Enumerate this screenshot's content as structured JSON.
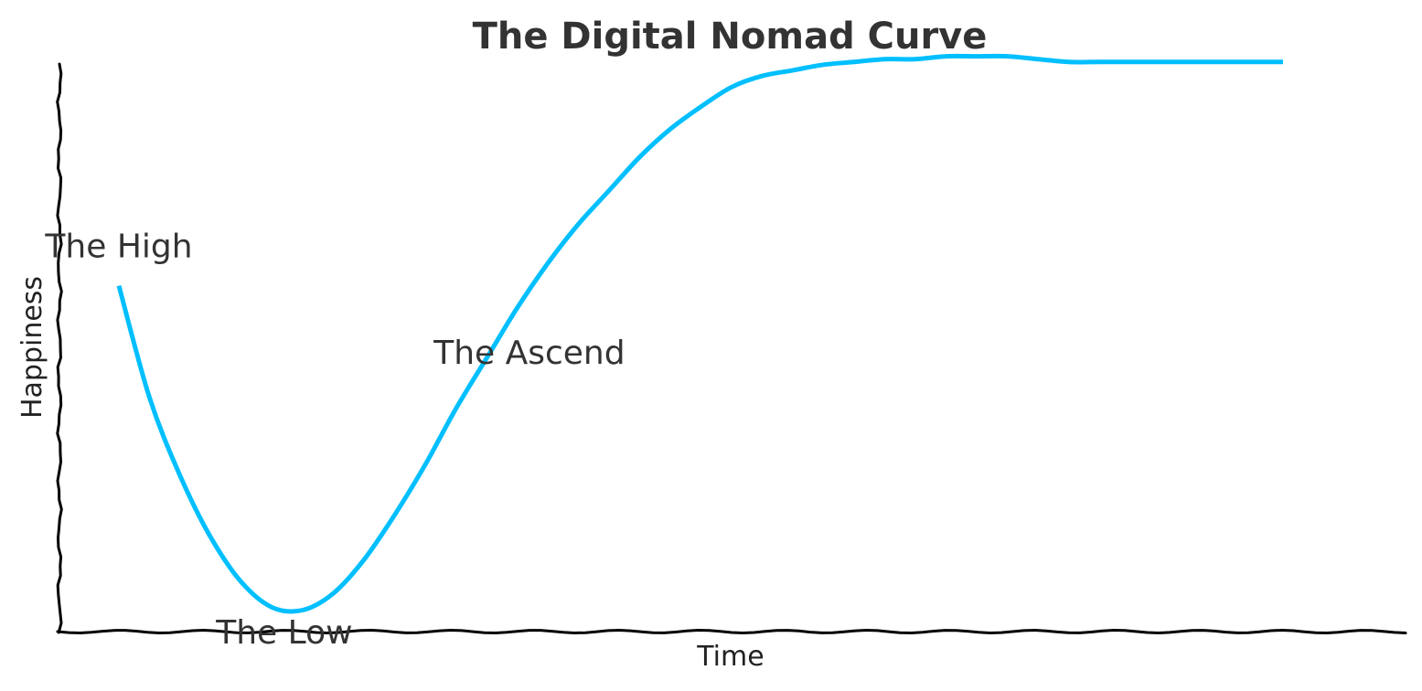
{
  "chart_data": {
    "type": "line",
    "title": "The Digital Nomad Curve",
    "xlabel": "Time",
    "ylabel": "Happiness",
    "xlim": [
      0,
      10
    ],
    "ylim": [
      0,
      10
    ],
    "grid": false,
    "ticks": false,
    "series": [
      {
        "color": "#00bfff",
        "x": [
          0.0,
          0.25,
          0.5,
          0.75,
          1.0,
          1.25,
          1.5,
          1.75,
          2.0,
          2.25,
          2.5,
          2.75,
          3.0,
          3.25,
          3.5,
          3.75,
          4.0,
          4.25,
          4.5,
          4.75,
          5.0,
          5.25,
          5.5,
          5.75,
          6.0,
          6.25,
          6.5,
          6.75,
          7.0,
          7.25,
          7.5,
          7.75,
          8.0,
          8.25,
          8.5,
          8.75,
          9.0,
          9.25,
          9.5
        ],
        "y": [
          6.2,
          4.2,
          2.8,
          1.7,
          0.9,
          0.45,
          0.4,
          0.7,
          1.3,
          2.1,
          3.0,
          4.0,
          4.9,
          5.8,
          6.6,
          7.3,
          7.9,
          8.5,
          9.0,
          9.4,
          9.75,
          9.95,
          10.05,
          10.15,
          10.2,
          10.25,
          10.25,
          10.3,
          10.3,
          10.3,
          10.25,
          10.2,
          10.2,
          10.2,
          10.2,
          10.2,
          10.2,
          10.2,
          10.2
        ]
      }
    ],
    "annotations": [
      {
        "text": "The High",
        "x": 0.0,
        "y": 6.9
      },
      {
        "text": "The Low",
        "x": 1.35,
        "y": 0.0
      },
      {
        "text": "The Ascend",
        "x": 3.35,
        "y": 5.0
      }
    ]
  }
}
